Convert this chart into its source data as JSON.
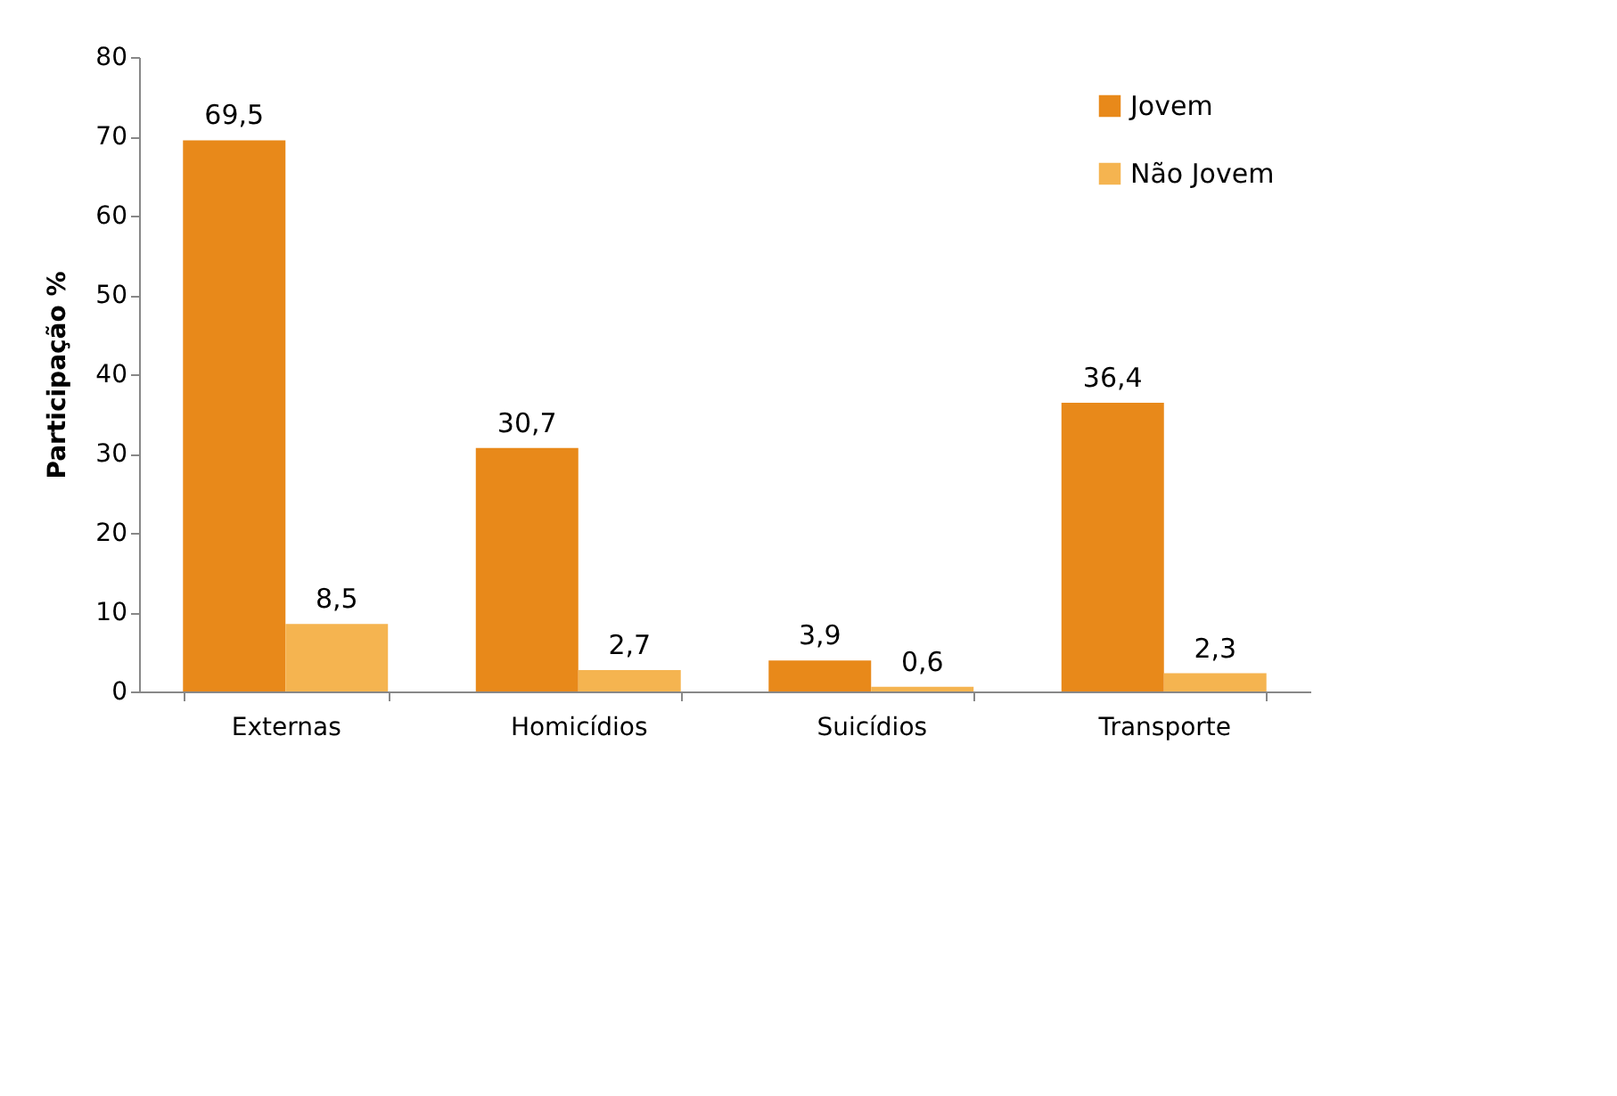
{
  "chart_data": {
    "type": "bar",
    "ylabel": "Participação %",
    "categories": [
      "Externas",
      "Homicídios",
      "Suicídios",
      "Transporte"
    ],
    "series": [
      {
        "name": "Jovem",
        "color": "#e8891a",
        "values": [
          69.5,
          30.7,
          3.9,
          36.4
        ],
        "value_labels": [
          "69,5",
          "30,7",
          "3,9",
          "36,4"
        ]
      },
      {
        "name": "Não Jovem",
        "color": "#f5b450",
        "values": [
          8.5,
          2.7,
          0.6,
          2.3
        ],
        "value_labels": [
          "8,5",
          "2,7",
          "0,6",
          "2,3"
        ]
      }
    ],
    "ylim": [
      0,
      80
    ],
    "yticks": [
      0,
      10,
      20,
      30,
      40,
      50,
      60,
      70,
      80
    ],
    "grid": false,
    "legend": "top right"
  }
}
